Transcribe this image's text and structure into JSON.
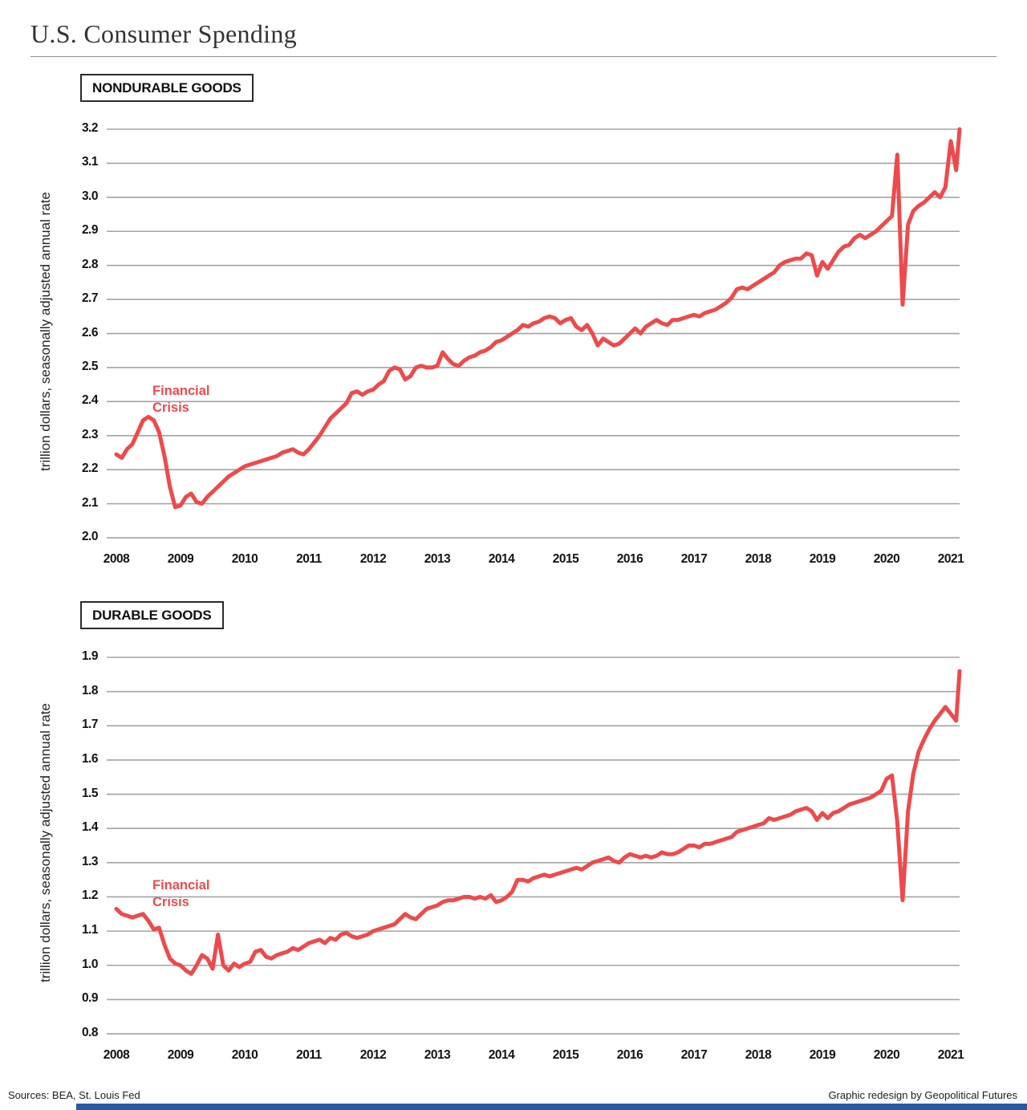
{
  "page": {
    "title": "U.S. Consumer Spending",
    "footer_left": "Sources: BEA, St. Louis Fed",
    "footer_right": "Graphic redesign by Geopolitical Futures"
  },
  "colors": {
    "line": "#ed4a4d",
    "grid": "#a3a3a3",
    "annotation": "#ed4a4d",
    "brand_bar": "#2b5aa5"
  },
  "chart_data": [
    {
      "type": "line",
      "title": "NONDURABLE GOODS",
      "ylabel": "trillion dollars, seasonally adjusted annual rate",
      "annotation": "Financial Crisis",
      "ylim": [
        2.0,
        3.2
      ],
      "ytick_step": 0.1,
      "grid": true,
      "legend_position": "none",
      "yticks": [
        "3.2",
        "3.1",
        "3.0",
        "2.9",
        "2.8",
        "2.7",
        "2.6",
        "2.5",
        "2.4",
        "2.3",
        "2.2",
        "2.1",
        "2.0"
      ],
      "xticks": [
        "2008",
        "2009",
        "2010",
        "2011",
        "2012",
        "2013",
        "2014",
        "2015",
        "2016",
        "2017",
        "2018",
        "2019",
        "2020",
        "2021"
      ],
      "x_start_year": 2008,
      "x_months_per_point": 1,
      "values": [
        2.245,
        2.235,
        2.26,
        2.275,
        2.31,
        2.345,
        2.355,
        2.345,
        2.31,
        2.24,
        2.15,
        2.09,
        2.095,
        2.12,
        2.13,
        2.105,
        2.1,
        2.12,
        2.135,
        2.15,
        2.165,
        2.18,
        2.19,
        2.2,
        2.21,
        2.215,
        2.22,
        2.225,
        2.23,
        2.235,
        2.24,
        2.25,
        2.255,
        2.26,
        2.25,
        2.245,
        2.26,
        2.28,
        2.3,
        2.325,
        2.35,
        2.365,
        2.38,
        2.395,
        2.425,
        2.43,
        2.42,
        2.43,
        2.435,
        2.45,
        2.46,
        2.49,
        2.5,
        2.495,
        2.465,
        2.475,
        2.5,
        2.505,
        2.5,
        2.5,
        2.505,
        2.545,
        2.525,
        2.51,
        2.505,
        2.52,
        2.53,
        2.535,
        2.545,
        2.55,
        2.56,
        2.575,
        2.58,
        2.59,
        2.6,
        2.61,
        2.625,
        2.62,
        2.63,
        2.635,
        2.645,
        2.65,
        2.645,
        2.63,
        2.64,
        2.645,
        2.62,
        2.61,
        2.625,
        2.6,
        2.565,
        2.585,
        2.575,
        2.565,
        2.57,
        2.585,
        2.6,
        2.615,
        2.6,
        2.62,
        2.63,
        2.64,
        2.63,
        2.625,
        2.64,
        2.64,
        2.645,
        2.65,
        2.655,
        2.65,
        2.66,
        2.665,
        2.67,
        2.68,
        2.69,
        2.705,
        2.73,
        2.735,
        2.73,
        2.74,
        2.75,
        2.76,
        2.77,
        2.78,
        2.8,
        2.81,
        2.815,
        2.82,
        2.82,
        2.835,
        2.83,
        2.77,
        2.81,
        2.79,
        2.815,
        2.84,
        2.855,
        2.86,
        2.88,
        2.89,
        2.88,
        2.89,
        2.9,
        2.915,
        2.93,
        2.945,
        3.125,
        2.685,
        2.92,
        2.96,
        2.975,
        2.985,
        3.0,
        3.015,
        3.0,
        3.03,
        3.165,
        3.08,
        3.2
      ]
    },
    {
      "type": "line",
      "title": "DURABLE GOODS",
      "ylabel": "trillion dollars, seasonally adjusted annual rate",
      "annotation": "Financial Crisis",
      "ylim": [
        0.8,
        1.9
      ],
      "ytick_step": 0.1,
      "grid": true,
      "legend_position": "none",
      "yticks": [
        "1.9",
        "1.8",
        "1.7",
        "1.6",
        "1.5",
        "1.4",
        "1.3",
        "1.2",
        "1.1",
        "1.0",
        "0.9",
        "0.8"
      ],
      "xticks": [
        "2008",
        "2009",
        "2010",
        "2011",
        "2012",
        "2013",
        "2014",
        "2015",
        "2016",
        "2017",
        "2018",
        "2019",
        "2020",
        "2021"
      ],
      "x_start_year": 2008,
      "x_months_per_point": 1,
      "values": [
        1.165,
        1.15,
        1.145,
        1.14,
        1.145,
        1.15,
        1.13,
        1.105,
        1.11,
        1.06,
        1.02,
        1.005,
        1.0,
        0.985,
        0.975,
        1.0,
        1.03,
        1.02,
        0.99,
        1.09,
        1.0,
        0.985,
        1.005,
        0.995,
        1.005,
        1.01,
        1.04,
        1.045,
        1.025,
        1.02,
        1.03,
        1.035,
        1.04,
        1.05,
        1.045,
        1.055,
        1.065,
        1.07,
        1.075,
        1.065,
        1.08,
        1.075,
        1.09,
        1.095,
        1.085,
        1.08,
        1.085,
        1.09,
        1.1,
        1.105,
        1.11,
        1.115,
        1.12,
        1.135,
        1.15,
        1.14,
        1.135,
        1.15,
        1.165,
        1.17,
        1.175,
        1.185,
        1.19,
        1.19,
        1.195,
        1.2,
        1.2,
        1.195,
        1.2,
        1.195,
        1.205,
        1.185,
        1.19,
        1.2,
        1.215,
        1.25,
        1.25,
        1.245,
        1.255,
        1.26,
        1.265,
        1.26,
        1.265,
        1.27,
        1.275,
        1.28,
        1.285,
        1.28,
        1.29,
        1.3,
        1.305,
        1.31,
        1.315,
        1.305,
        1.3,
        1.315,
        1.325,
        1.32,
        1.315,
        1.32,
        1.315,
        1.32,
        1.33,
        1.325,
        1.325,
        1.33,
        1.34,
        1.35,
        1.35,
        1.345,
        1.355,
        1.355,
        1.36,
        1.365,
        1.37,
        1.375,
        1.39,
        1.395,
        1.4,
        1.405,
        1.41,
        1.415,
        1.43,
        1.425,
        1.43,
        1.435,
        1.44,
        1.45,
        1.455,
        1.46,
        1.45,
        1.425,
        1.445,
        1.43,
        1.445,
        1.45,
        1.46,
        1.47,
        1.475,
        1.48,
        1.485,
        1.49,
        1.5,
        1.51,
        1.545,
        1.555,
        1.42,
        1.19,
        1.45,
        1.56,
        1.625,
        1.66,
        1.69,
        1.715,
        1.735,
        1.755,
        1.735,
        1.715,
        1.86
      ]
    }
  ]
}
